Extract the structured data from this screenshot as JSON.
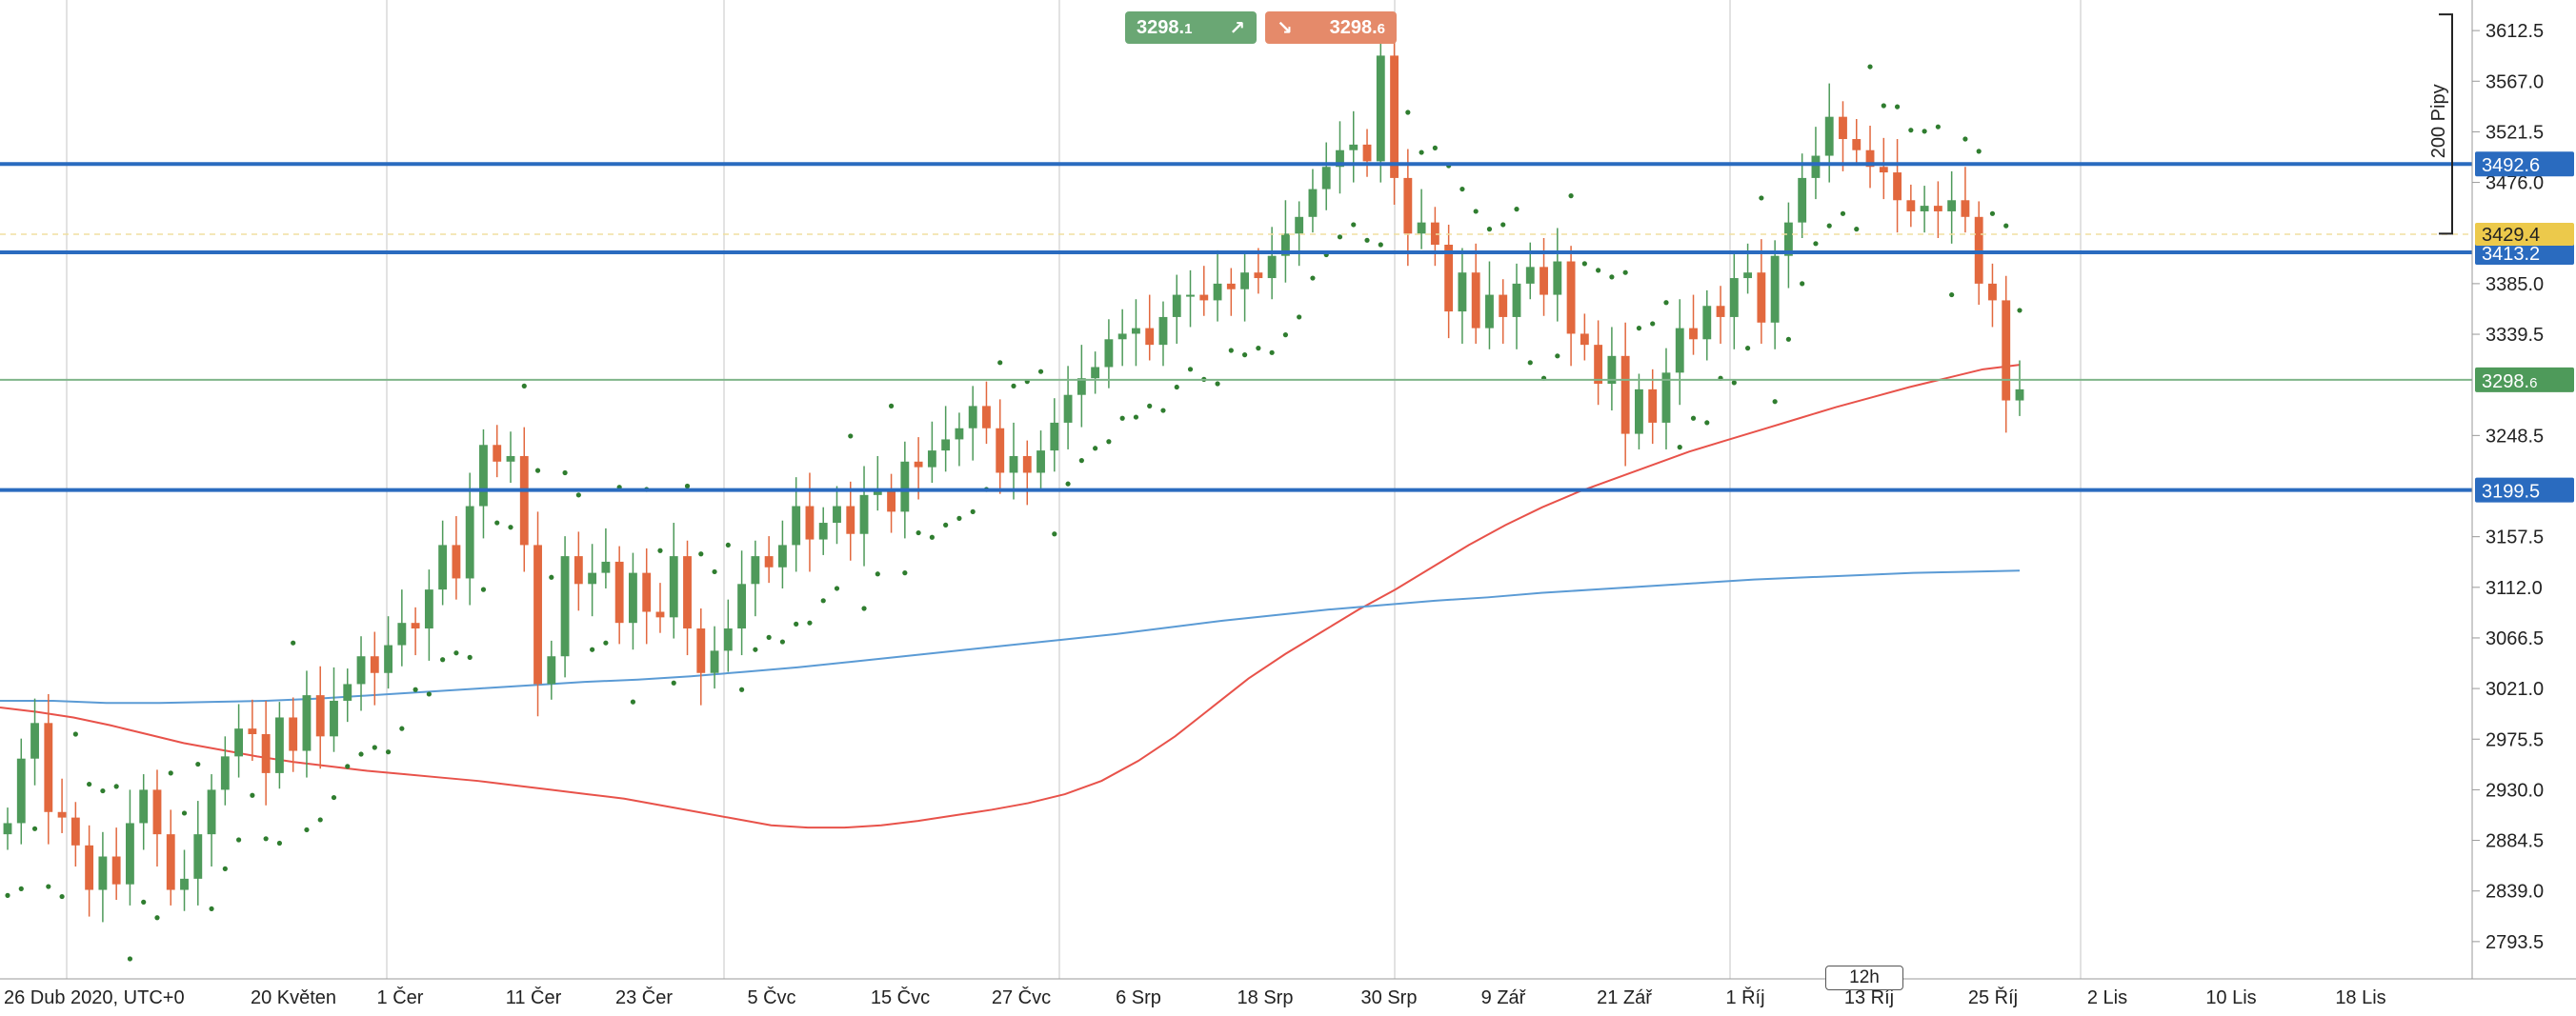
{
  "chart_data": {
    "type": "candlestick",
    "symbol_timezone_label": "26 Dub 2020, UTC+0",
    "x_axis": {
      "labels": [
        "20 Květen",
        "1 Čer",
        "11 Čer",
        "23 Čer",
        "5 Čvc",
        "15 Čvc",
        "27 Čvc",
        "6 Srp",
        "18 Srp",
        "30 Srp",
        "9 Zář",
        "21 Zář",
        "1 Říj",
        "13 Říj",
        "25 Říj",
        "2 Lis",
        "10 Lis",
        "18 Lis"
      ]
    },
    "y_axis": {
      "ylim": [
        2760,
        3640
      ],
      "ticks": [
        2793.5,
        2839.0,
        2884.5,
        2930.0,
        2975.5,
        3021.0,
        3066.5,
        3112.0,
        3157.5,
        3248.5,
        3339.5,
        3385.0,
        3476.0,
        3521.5,
        3567.0,
        3612.5
      ],
      "tick_labels": [
        "2793.5",
        "2839.0",
        "2884.5",
        "2930.0",
        "2975.5",
        "3021.0",
        "3066.5",
        "3112.0",
        "3157.5",
        "3248.5",
        "3339.5",
        "3385.0",
        "3476.0",
        "3521.5",
        "3567.0",
        "3612.5"
      ]
    },
    "price_lines": [
      {
        "value": 3492.6,
        "label": "3492.6",
        "color": "#2a6bbf"
      },
      {
        "value": 3413.2,
        "label": "3413.2",
        "color": "#2a6bbf"
      },
      {
        "value": 3199.5,
        "label": "3199.5",
        "color": "#2a6bbf"
      }
    ],
    "current_price": {
      "value": 3298.6,
      "label_main": "3298.",
      "label_small": "6",
      "color": "#4e9a5a"
    },
    "alert_level": {
      "value": 3429.4,
      "label": "3429.4",
      "color": "#ecc94b"
    },
    "measure": {
      "label": "200 Pipy",
      "from": 3627,
      "to": 3430
    },
    "candles_close": [
      2900,
      2958,
      2990,
      2910,
      2905,
      2880,
      2840,
      2870,
      2845,
      2900,
      2930,
      2890,
      2840,
      2850,
      2890,
      2930,
      2960,
      2985,
      2980,
      2945,
      2995,
      2965,
      3015,
      2978,
      3010,
      3025,
      3050,
      3035,
      3060,
      3080,
      3075,
      3110,
      3150,
      3120,
      3185,
      3240,
      3225,
      3230,
      3150,
      3025,
      3050,
      3140,
      3115,
      3125,
      3135,
      3080,
      3125,
      3090,
      3085,
      3140,
      3075,
      3035,
      3055,
      3075,
      3115,
      3140,
      3130,
      3150,
      3185,
      3155,
      3170,
      3185,
      3160,
      3195,
      3200,
      3180,
      3225,
      3220,
      3235,
      3245,
      3255,
      3275,
      3255,
      3215,
      3230,
      3215,
      3235,
      3260,
      3285,
      3300,
      3310,
      3335,
      3340,
      3345,
      3330,
      3355,
      3375,
      3375,
      3370,
      3385,
      3380,
      3395,
      3390,
      3410,
      3430,
      3445,
      3470,
      3490,
      3505,
      3510,
      3495,
      3590,
      3480,
      3430,
      3440,
      3420,
      3360,
      3395,
      3345,
      3375,
      3355,
      3385,
      3400,
      3375,
      3405,
      3340,
      3330,
      3295,
      3320,
      3250,
      3290,
      3260,
      3305,
      3345,
      3335,
      3365,
      3355,
      3390,
      3395,
      3350,
      3410,
      3440,
      3480,
      3500,
      3535,
      3515,
      3505,
      3490,
      3485,
      3460,
      3450,
      3455,
      3450,
      3460,
      3445,
      3385,
      3370,
      3280,
      3290
    ],
    "candles_open": [
      2890,
      2900,
      2958,
      2990,
      2910,
      2905,
      2880,
      2840,
      2870,
      2845,
      2900,
      2930,
      2890,
      2840,
      2850,
      2890,
      2930,
      2960,
      2985,
      2980,
      2945,
      2995,
      2965,
      3015,
      2978,
      3010,
      3025,
      3050,
      3035,
      3060,
      3080,
      3075,
      3110,
      3150,
      3120,
      3185,
      3240,
      3225,
      3230,
      3150,
      3025,
      3050,
      3140,
      3115,
      3125,
      3135,
      3080,
      3125,
      3090,
      3085,
      3140,
      3075,
      3035,
      3055,
      3075,
      3115,
      3140,
      3130,
      3150,
      3185,
      3155,
      3170,
      3185,
      3160,
      3195,
      3200,
      3180,
      3225,
      3220,
      3235,
      3245,
      3255,
      3275,
      3255,
      3215,
      3230,
      3215,
      3235,
      3260,
      3285,
      3300,
      3310,
      3335,
      3340,
      3345,
      3330,
      3355,
      3375,
      3375,
      3370,
      3385,
      3380,
      3395,
      3390,
      3410,
      3430,
      3445,
      3470,
      3490,
      3505,
      3510,
      3495,
      3590,
      3480,
      3430,
      3440,
      3420,
      3360,
      3395,
      3345,
      3375,
      3355,
      3385,
      3400,
      3375,
      3405,
      3340,
      3330,
      3295,
      3320,
      3250,
      3290,
      3260,
      3305,
      3345,
      3335,
      3365,
      3355,
      3390,
      3395,
      3350,
      3410,
      3440,
      3480,
      3500,
      3535,
      3515,
      3505,
      3490,
      3485,
      3460,
      3450,
      3455,
      3450,
      3460,
      3445,
      3385,
      3370,
      3280
    ],
    "ma_fast": [
      3004,
      3000,
      2995,
      2988,
      2980,
      2972,
      2966,
      2960,
      2955,
      2951,
      2947,
      2944,
      2941,
      2938,
      2934,
      2930,
      2926,
      2922,
      2916,
      2910,
      2904,
      2898,
      2896,
      2896,
      2898,
      2902,
      2907,
      2912,
      2918,
      2926,
      2938,
      2956,
      2978,
      3004,
      3030,
      3052,
      3072,
      3092,
      3110,
      3130,
      3150,
      3168,
      3184,
      3198,
      3210,
      3222,
      3234,
      3244,
      3254,
      3264,
      3274,
      3283,
      3292,
      3300,
      3308,
      3312
    ],
    "ma_slow": [
      3010,
      3010,
      3008,
      3008,
      3009,
      3010,
      3012,
      3015,
      3018,
      3021,
      3024,
      3027,
      3029,
      3032,
      3036,
      3040,
      3045,
      3050,
      3055,
      3060,
      3065,
      3070,
      3076,
      3082,
      3087,
      3092,
      3096,
      3100,
      3103,
      3107,
      3110,
      3113,
      3116,
      3119,
      3121,
      3123,
      3125,
      3126,
      3127
    ],
    "colors": {
      "up": "#4e9a5a",
      "down": "#e2683e",
      "ma_fast": "#e8524a",
      "ma_slow": "#5b9bd5",
      "psar": "#2f7d2f",
      "grid": "#d9d9d9"
    }
  },
  "trade": {
    "sell_price_main": "3298.",
    "sell_price_small": "1",
    "buy_price_main": "3298.",
    "buy_price_small": "6",
    "sell_icon": "arrow-up-right-icon",
    "buy_icon": "arrow-down-right-icon"
  },
  "timeframe": "12h"
}
